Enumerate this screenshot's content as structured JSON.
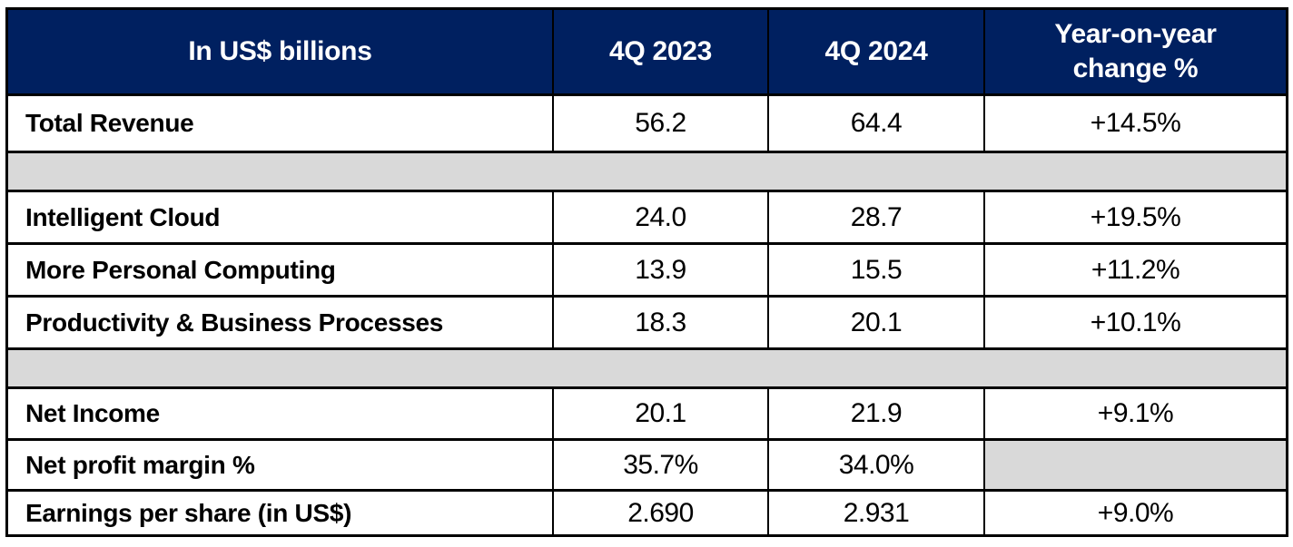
{
  "colors": {
    "header_bg": "#002060",
    "header_text": "#ffffff",
    "separator_bg": "#d9d9d9",
    "border": "#000000",
    "row_bg": "#ffffff",
    "body_text": "#000000"
  },
  "header": {
    "metric_label": "In US$ billions",
    "q2023": "4Q 2023",
    "q2024": "4Q 2024",
    "change_line1": "Year-on-year",
    "change_line2": "change %"
  },
  "rows": [
    {
      "label": "Total Revenue",
      "q2023": "56.2",
      "q2024": "64.4",
      "change": "+14.5%"
    },
    {
      "label": "Intelligent Cloud",
      "q2023": "24.0",
      "q2024": "28.7",
      "change": "+19.5%"
    },
    {
      "label": "More Personal Computing",
      "q2023": "13.9",
      "q2024": "15.5",
      "change": "+11.2%"
    },
    {
      "label": "Productivity & Business Processes",
      "q2023": "18.3",
      "q2024": "20.1",
      "change": "+10.1%"
    },
    {
      "label": "Net Income",
      "q2023": "20.1",
      "q2024": "21.9",
      "change": "+9.1%"
    },
    {
      "label": "Net profit margin %",
      "q2023": "35.7%",
      "q2024": "34.0%",
      "change": ""
    },
    {
      "label": "Earnings per share (in US$)",
      "q2023": "2.690",
      "q2024": "2.931",
      "change": "+9.0%"
    }
  ],
  "chart_data": {
    "type": "table",
    "title": "In US$ billions",
    "columns": [
      "In US$ billions",
      "4Q 2023",
      "4Q 2024",
      "Year-on-year change %"
    ],
    "rows": [
      [
        "Total Revenue",
        "56.2",
        "64.4",
        "+14.5%"
      ],
      [
        "Intelligent Cloud",
        "24.0",
        "28.7",
        "+19.5%"
      ],
      [
        "More Personal Computing",
        "13.9",
        "15.5",
        "+11.2%"
      ],
      [
        "Productivity & Business Processes",
        "18.3",
        "20.1",
        "+10.1%"
      ],
      [
        "Net Income",
        "20.1",
        "21.9",
        "+9.1%"
      ],
      [
        "Net profit margin %",
        "35.7%",
        "34.0%",
        ""
      ],
      [
        "Earnings per share (in US$)",
        "2.690",
        "2.931",
        "+9.0%"
      ]
    ],
    "layout_hints": {
      "group_separators_after_rows": [
        0,
        3
      ],
      "empty_change_cell_row": 5,
      "header_style": "dark-navy, white bold text",
      "separator_style": "light-gray full-width band"
    }
  }
}
